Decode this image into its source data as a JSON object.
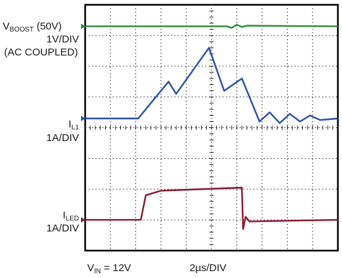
{
  "chart_data": {
    "type": "line",
    "title": "",
    "grid": true,
    "grid_divisions": {
      "x": 10,
      "y": 8
    },
    "xlabel": "2µs/DIV",
    "x_unit_per_div": "2µs",
    "condition": {
      "prefix": "V",
      "sub": "IN",
      "suffix": " = 12V"
    },
    "series": [
      {
        "name_main": "V",
        "name_sub": "BOOST",
        "name_suffix": " (50V)",
        "scale": "1V/DIV",
        "coupling": "(AC COUPLED)",
        "color": "#2e8b3a",
        "baseline_div": 0.7,
        "points_div": [
          [
            0,
            0.7
          ],
          [
            5.6,
            0.7
          ],
          [
            5.8,
            0.75
          ],
          [
            6.0,
            0.65
          ],
          [
            6.2,
            0.72
          ],
          [
            6.4,
            0.68
          ],
          [
            10,
            0.7
          ]
        ]
      },
      {
        "name_main": "I",
        "name_sub": "L1",
        "name_suffix": "",
        "scale": "1A/DIV",
        "color": "#2f4fa8",
        "baseline_div": 3.7,
        "points_div": [
          [
            0,
            3.7
          ],
          [
            2.1,
            3.7
          ],
          [
            3.3,
            2.5
          ],
          [
            3.6,
            2.9
          ],
          [
            4.9,
            1.4
          ],
          [
            5.5,
            2.8
          ],
          [
            6.2,
            2.4
          ],
          [
            6.9,
            3.8
          ],
          [
            7.3,
            3.5
          ],
          [
            7.7,
            3.85
          ],
          [
            8.1,
            3.55
          ],
          [
            8.5,
            3.8
          ],
          [
            8.9,
            3.6
          ],
          [
            9.3,
            3.75
          ],
          [
            10,
            3.7
          ]
        ]
      },
      {
        "name_main": "I",
        "name_sub": "LED",
        "name_suffix": "",
        "scale": "1A/DIV",
        "color": "#8b1a2e",
        "baseline_div": 7.0,
        "points_div": [
          [
            0,
            7.0
          ],
          [
            2.2,
            7.0
          ],
          [
            2.4,
            6.2
          ],
          [
            3.0,
            6.05
          ],
          [
            6.2,
            5.95
          ],
          [
            6.25,
            7.3
          ],
          [
            6.35,
            6.9
          ],
          [
            6.5,
            7.05
          ],
          [
            10,
            7.0
          ]
        ]
      }
    ]
  }
}
